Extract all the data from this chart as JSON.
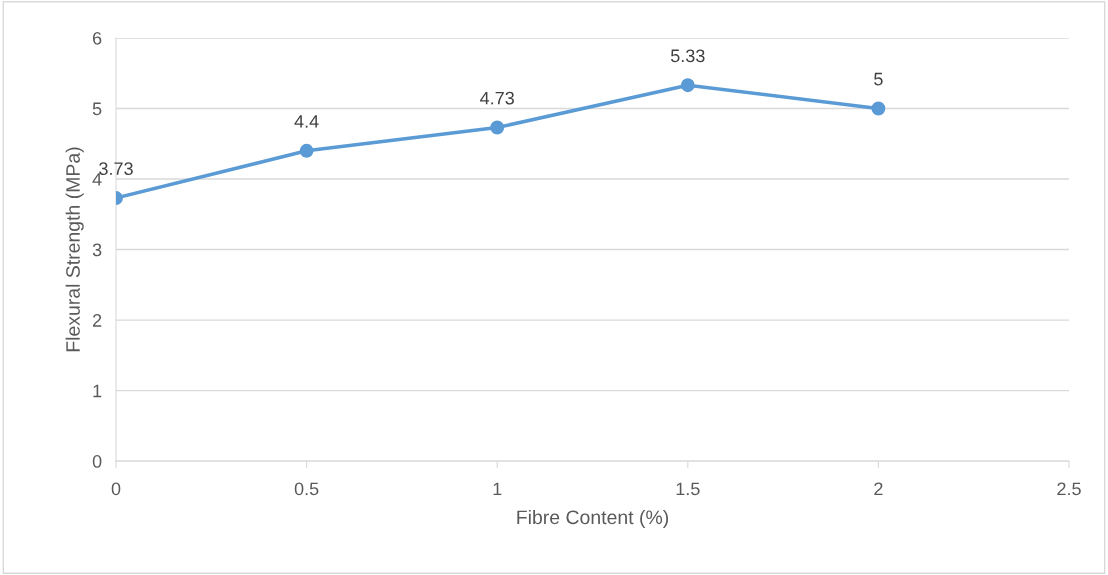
{
  "chart_data": {
    "type": "line",
    "xlabel": "Fibre Content (%)",
    "ylabel": "Flexural Strength (MPa)",
    "x": [
      0,
      0.5,
      1,
      1.5,
      2
    ],
    "series": [
      {
        "color": "#5b9bd5",
        "values": [
          3.73,
          4.4,
          4.73,
          5.33,
          5
        ]
      }
    ],
    "xlim": [
      0,
      2.5
    ],
    "xticks": [
      0,
      0.5,
      1,
      1.5,
      2,
      2.5
    ],
    "ylim": [
      0,
      6
    ],
    "yticks": [
      0,
      1,
      2,
      3,
      4,
      5,
      6
    ],
    "grid": "y",
    "marker": "circle",
    "line_style": "solid",
    "data_labels": true
  }
}
